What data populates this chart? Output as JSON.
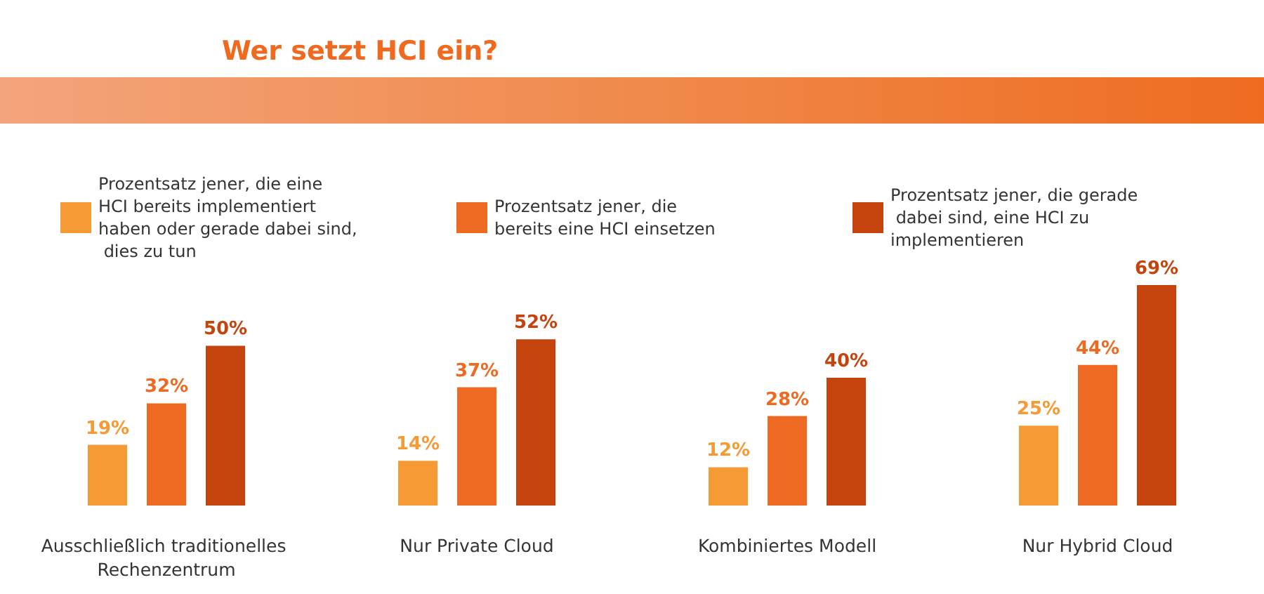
{
  "chart_data": {
    "type": "bar",
    "title": "Wer setzt HCI ein?",
    "categories": [
      "Ausschließlich traditionelles Rechenzentrum",
      "Nur Private Cloud",
      "Kombiniertes Modell",
      "Nur Hybrid Cloud"
    ],
    "series": [
      {
        "name": "Prozentsatz jener, die eine HCI bereits implementiert haben oder gerade dabei sind, dies zu tun",
        "color": "#f59a35",
        "values": [
          19,
          14,
          12,
          25
        ],
        "value_labels": [
          "19%",
          "14%",
          "12%",
          "25%"
        ]
      },
      {
        "name": "Prozentsatz jener, die bereits eine HCI einsetzen",
        "color": "#ee6a22",
        "values": [
          32,
          37,
          28,
          44
        ],
        "value_labels": [
          "32%",
          "37%",
          "28%",
          "44%"
        ]
      },
      {
        "name": "Prozentsatz jener, die gerade dabei sind, eine HCI zu implementieren",
        "color": "#c5440d",
        "values": [
          50,
          52,
          40,
          69
        ],
        "value_labels": [
          "50%",
          "52%",
          "40%",
          "69%"
        ]
      }
    ],
    "grid": false,
    "legend": "top"
  }
}
